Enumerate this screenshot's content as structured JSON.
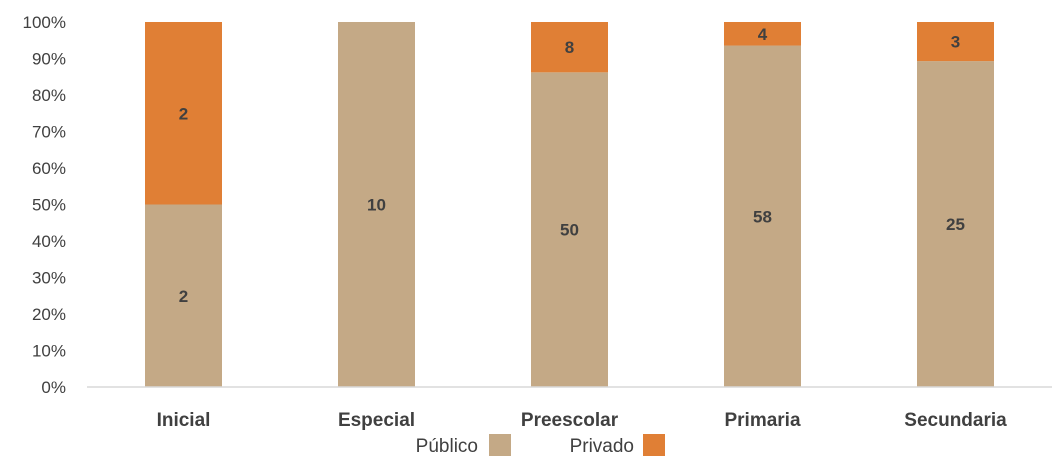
{
  "chart_data": {
    "type": "bar",
    "stacked": "percent",
    "categories": [
      "Inicial",
      "Especial",
      "Preescolar",
      "Primaria",
      "Secundaria"
    ],
    "series": [
      {
        "name": "Público",
        "values": [
          2,
          10,
          50,
          58,
          25
        ],
        "color": "#C4A986"
      },
      {
        "name": "Privado",
        "values": [
          2,
          0,
          8,
          4,
          3
        ],
        "color": "#E07F35"
      }
    ],
    "ylim": [
      0,
      100
    ],
    "yticks": [
      "0%",
      "10%",
      "20%",
      "30%",
      "40%",
      "50%",
      "60%",
      "70%",
      "80%",
      "90%",
      "100%"
    ],
    "grid": false,
    "legend": "bottom",
    "axis_color": "#D9D9D9",
    "label_color": "#404040"
  }
}
